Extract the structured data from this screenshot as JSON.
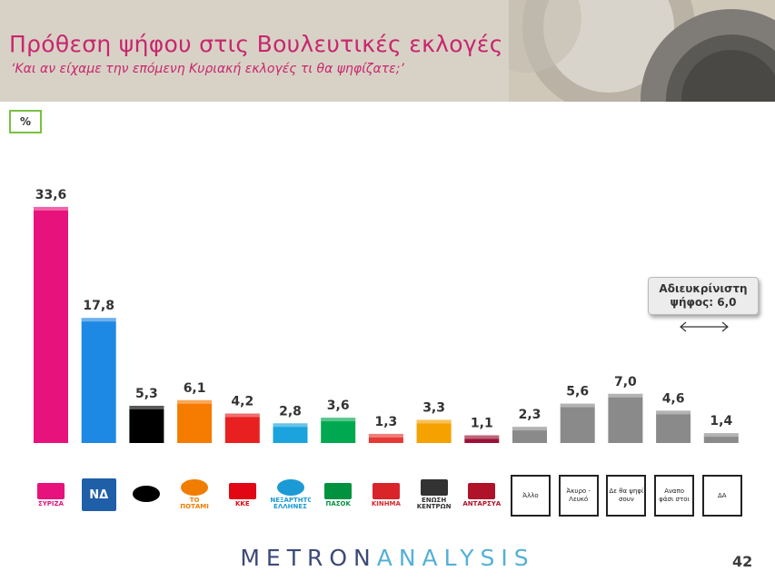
{
  "title": "Πρόθεση ψήφου στις Βουλευτικές εκλογές",
  "subtitle": "‘Και αν είχαμε την επόμενη Κυριακή εκλογές τι θα ψηφίζατε;’",
  "unit_label": "%",
  "undecided_box": "Αδιευκρίνιστη ψήφος: 6,0",
  "brand": {
    "part1": "METRON",
    "part2": "ANALYSIS"
  },
  "page_number": "42",
  "logos": [
    {
      "name": "syriza-logo",
      "text": "ΣΥΡΙΖΑ",
      "color": "#e8127c"
    },
    {
      "name": "nd-logo",
      "text": "ΝΔ",
      "color": "#1f5fa8"
    },
    {
      "name": "golden-dawn-logo",
      "text": "",
      "color": "#000000"
    },
    {
      "name": "to-potami-logo",
      "text": "ΤΟ ΠΟΤΑΜΙ",
      "color": "#f07d00"
    },
    {
      "name": "kke-logo",
      "text": "ΚΚΕ",
      "color": "#e30613"
    },
    {
      "name": "anel-logo",
      "text": "ΑΝΕΞΑΡΤΗΤΟΙ ΕΛΛΗΝΕΣ",
      "color": "#1b9ad6"
    },
    {
      "name": "pasok-logo",
      "text": "ΠΑΣΟΚ",
      "color": "#00923f"
    },
    {
      "name": "kinima-logo",
      "text": "ΚΙΝΗΜΑ",
      "color": "#d9252a"
    },
    {
      "name": "enosi-kentroon-logo",
      "text": "ΕΝΩΣΗ ΚΕΝΤΡΩΝ",
      "color": "#333333"
    },
    {
      "name": "antarsya-logo",
      "text": "ΑΝΤΑΡΣΥΑ",
      "color": "#b0122a"
    }
  ],
  "category_boxes": [
    "Άλλο",
    "Άκυρο - Λευκό",
    "Δε θα ψηφί σουν",
    "Αναπο φάσι στοι",
    "ΔΑ"
  ],
  "chart_data": {
    "type": "bar",
    "title": "Πρόθεση ψήφου στις Βουλευτικές εκλογές",
    "ylabel": "%",
    "categories": [
      "ΣΥΡΙΖΑ",
      "ΝΔ",
      "Χρυσή Αυγή",
      "Το Ποτάμι",
      "ΚΚΕ",
      "Ανεξάρτητοι Έλληνες",
      "ΠΑΣΟΚ",
      "Κίνημα",
      "Ένωση Κεντρώων",
      "ΑΝΤΑΡΣΥΑ",
      "Άλλο",
      "Άκυρο - Λευκό",
      "Δε θα ψηφίσουν",
      "Αναποφάσιστοι",
      "ΔΑ"
    ],
    "values": [
      33.6,
      17.8,
      5.3,
      6.1,
      4.2,
      2.8,
      3.6,
      1.3,
      3.3,
      1.1,
      2.3,
      5.6,
      7.0,
      4.6,
      1.4
    ],
    "value_labels": [
      "33,6",
      "17,8",
      "5,3",
      "6,1",
      "4,2",
      "2,8",
      "3,6",
      "1,3",
      "3,3",
      "1,1",
      "2,3",
      "5,6",
      "7,0",
      "4,6",
      "1,4"
    ],
    "colors": [
      "#e8127c",
      "#1e88e5",
      "#000000",
      "#f57c00",
      "#e8201f",
      "#1aa3dd",
      "#00a84f",
      "#e53935",
      "#f5a100",
      "#9b1236",
      "#8a8a8a",
      "#8a8a8a",
      "#8a8a8a",
      "#8a8a8a",
      "#8a8a8a"
    ],
    "grid": false,
    "ylim": [
      0,
      35
    ]
  }
}
